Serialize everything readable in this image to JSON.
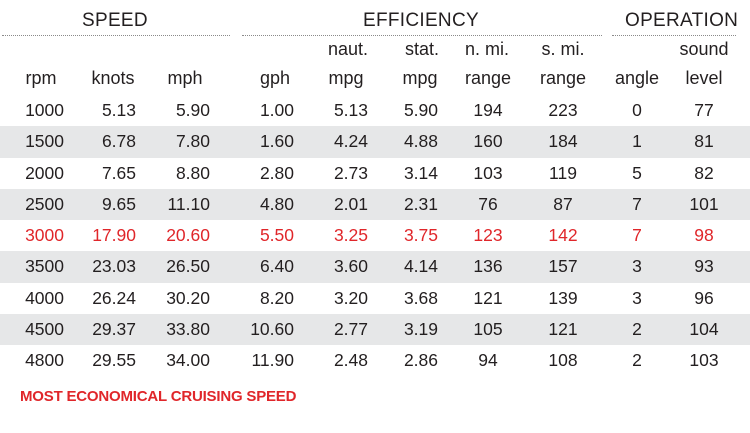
{
  "groups": {
    "speed": "SPEED",
    "efficiency": "EFFICIENCY",
    "operation": "OPERATION"
  },
  "headers": {
    "rpm": "rpm",
    "knots": "knots",
    "mph": "mph",
    "gph": "gph",
    "naut_mpg_top": "naut.",
    "naut_mpg_bottom": "mpg",
    "stat_mpg_top": "stat.",
    "stat_mpg_bottom": "mpg",
    "nmi_range_top": "n. mi.",
    "nmi_range_bottom": "range",
    "smi_range_top": "s. mi.",
    "smi_range_bottom": "range",
    "angle": "angle",
    "sound_top": "sound",
    "sound_bottom": "level"
  },
  "rows": [
    [
      "1000",
      "5.13",
      "5.90",
      "1.00",
      "5.13",
      "5.90",
      "194",
      "223",
      "0",
      "77"
    ],
    [
      "1500",
      "6.78",
      "7.80",
      "1.60",
      "4.24",
      "4.88",
      "160",
      "184",
      "1",
      "81"
    ],
    [
      "2000",
      "7.65",
      "8.80",
      "2.80",
      "2.73",
      "3.14",
      "103",
      "119",
      "5",
      "82"
    ],
    [
      "2500",
      "9.65",
      "11.10",
      "4.80",
      "2.01",
      "2.31",
      "76",
      "87",
      "7",
      "101"
    ],
    [
      "3000",
      "17.90",
      "20.60",
      "5.50",
      "3.25",
      "3.75",
      "123",
      "142",
      "7",
      "98"
    ],
    [
      "3500",
      "23.03",
      "26.50",
      "6.40",
      "3.60",
      "4.14",
      "136",
      "157",
      "3",
      "93"
    ],
    [
      "4000",
      "26.24",
      "30.20",
      "8.20",
      "3.20",
      "3.68",
      "121",
      "139",
      "3",
      "96"
    ],
    [
      "4500",
      "29.37",
      "33.80",
      "10.60",
      "2.77",
      "3.19",
      "105",
      "121",
      "2",
      "104"
    ],
    [
      "4800",
      "29.55",
      "34.00",
      "11.90",
      "2.48",
      "2.86",
      "94",
      "108",
      "2",
      "103"
    ]
  ],
  "highlight_row": 4,
  "note": "MOST ECONOMICAL CRUISING SPEED",
  "colors": {
    "highlight": "#e0262a",
    "stripe": "#e6e7e8",
    "text": "#231f20"
  }
}
